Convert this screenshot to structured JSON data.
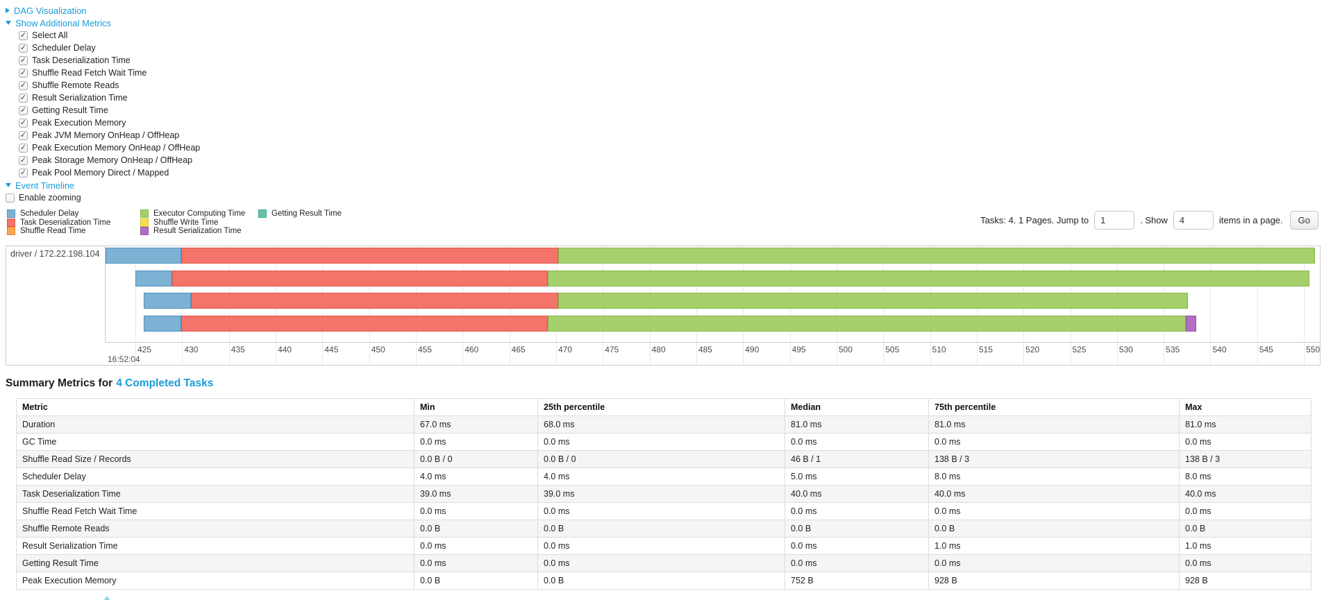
{
  "accent_color": "#1a9cd8",
  "controls": {
    "dag_toggle": {
      "label": "DAG Visualization",
      "state": "collapsed"
    },
    "metrics_toggle": {
      "label": "Show Additional Metrics",
      "state": "expanded"
    },
    "metric_checkboxes": [
      {
        "label": "Select All",
        "checked": true
      },
      {
        "label": "Scheduler Delay",
        "checked": true
      },
      {
        "label": "Task Deserialization Time",
        "checked": true
      },
      {
        "label": "Shuffle Read Fetch Wait Time",
        "checked": true
      },
      {
        "label": "Shuffle Remote Reads",
        "checked": true
      },
      {
        "label": "Result Serialization Time",
        "checked": true
      },
      {
        "label": "Getting Result Time",
        "checked": true
      },
      {
        "label": "Peak Execution Memory",
        "checked": true
      },
      {
        "label": "Peak JVM Memory OnHeap / OffHeap",
        "checked": true
      },
      {
        "label": "Peak Execution Memory OnHeap / OffHeap",
        "checked": true
      },
      {
        "label": "Peak Storage Memory OnHeap / OffHeap",
        "checked": true
      },
      {
        "label": "Peak Pool Memory Direct / Mapped",
        "checked": true
      }
    ],
    "timeline_toggle": {
      "label": "Event Timeline",
      "state": "expanded"
    },
    "zoom_checkbox": {
      "label": "Enable zooming",
      "checked": false
    }
  },
  "pagination": {
    "info_text": "Tasks: 4. 1 Pages. Jump to",
    "jump_input": "1",
    "between_text": ". Show",
    "page_size_input": "4",
    "after_text": "items in a page.",
    "go_button": "Go"
  },
  "legend": {
    "items": [
      {
        "key": "scheduler_delay",
        "label": "Scheduler Delay"
      },
      {
        "key": "task_deserialization",
        "label": "Task Deserialization Time"
      },
      {
        "key": "shuffle_read",
        "label": "Shuffle Read Time"
      },
      {
        "key": "executor_computing",
        "label": "Executor Computing Time"
      },
      {
        "key": "shuffle_write",
        "label": "Shuffle Write Time"
      },
      {
        "key": "result_serialization",
        "label": "Result Serialization Time"
      },
      {
        "key": "getting_result",
        "label": "Getting Result Time"
      }
    ],
    "column_sizes": [
      3,
      3,
      1
    ]
  },
  "chart_data": {
    "type": "timeline",
    "group_label": "driver / 172.22.198.104",
    "x_axis": {
      "major_label": "16:52:04",
      "tick_start": 425,
      "tick_end": 550,
      "tick_step": 5,
      "domain": [
        421.8,
        551.7
      ],
      "unit": "ms within second 16:52:04"
    },
    "colors": {
      "scheduler_delay": {
        "fill": "#7eb2d5",
        "border": "#4e90be"
      },
      "task_deserialization": {
        "fill": "#f4736b",
        "border": "#e35649"
      },
      "shuffle_read": {
        "fill": "#f8a450",
        "border": "#e8882f"
      },
      "executor_computing": {
        "fill": "#a5d06b",
        "border": "#87b847"
      },
      "shuffle_write": {
        "fill": "#f2e04f",
        "border": "#d9c536"
      },
      "result_serialization": {
        "fill": "#b06fc1",
        "border": "#9551a6"
      },
      "getting_result": {
        "fill": "#66c2a9",
        "border": "#3fa98c"
      }
    },
    "tasks": [
      {
        "segments": [
          {
            "name": "scheduler_delay",
            "start": 421.8,
            "end": 429.9
          },
          {
            "name": "task_deserialization",
            "start": 429.9,
            "end": 470.2
          },
          {
            "name": "executor_computing",
            "start": 470.2,
            "end": 551.2
          }
        ]
      },
      {
        "segments": [
          {
            "name": "scheduler_delay",
            "start": 425.0,
            "end": 428.9
          },
          {
            "name": "task_deserialization",
            "start": 428.9,
            "end": 469.1
          },
          {
            "name": "executor_computing",
            "start": 469.1,
            "end": 550.6
          }
        ]
      },
      {
        "segments": [
          {
            "name": "scheduler_delay",
            "start": 425.9,
            "end": 430.9
          },
          {
            "name": "task_deserialization",
            "start": 430.9,
            "end": 470.2
          },
          {
            "name": "executor_computing",
            "start": 470.2,
            "end": 537.6
          }
        ]
      },
      {
        "segments": [
          {
            "name": "scheduler_delay",
            "start": 425.9,
            "end": 429.9
          },
          {
            "name": "task_deserialization",
            "start": 429.9,
            "end": 469.1
          },
          {
            "name": "executor_computing",
            "start": 469.1,
            "end": 537.4
          },
          {
            "name": "result_serialization",
            "start": 537.4,
            "end": 538.5
          }
        ]
      }
    ]
  },
  "summary": {
    "title_prefix": "Summary Metrics for",
    "title_link": "4 Completed Tasks",
    "table": {
      "columns": [
        "Metric",
        "Min",
        "25th percentile",
        "Median",
        "75th percentile",
        "Max"
      ],
      "rows": [
        [
          "Duration",
          "67.0 ms",
          "68.0 ms",
          "81.0 ms",
          "81.0 ms",
          "81.0 ms"
        ],
        [
          "GC Time",
          "0.0 ms",
          "0.0 ms",
          "0.0 ms",
          "0.0 ms",
          "0.0 ms"
        ],
        [
          "Shuffle Read Size / Records",
          "0.0 B / 0",
          "0.0 B / 0",
          "46 B / 1",
          "138 B / 3",
          "138 B / 3"
        ],
        [
          "Scheduler Delay",
          "4.0 ms",
          "4.0 ms",
          "5.0 ms",
          "8.0 ms",
          "8.0 ms"
        ],
        [
          "Task Deserialization Time",
          "39.0 ms",
          "39.0 ms",
          "40.0 ms",
          "40.0 ms",
          "40.0 ms"
        ],
        [
          "Shuffle Read Fetch Wait Time",
          "0.0 ms",
          "0.0 ms",
          "0.0 ms",
          "0.0 ms",
          "0.0 ms"
        ],
        [
          "Shuffle Remote Reads",
          "0.0 B",
          "0.0 B",
          "0.0 B",
          "0.0 B",
          "0.0 B"
        ],
        [
          "Result Serialization Time",
          "0.0 ms",
          "0.0 ms",
          "0.0 ms",
          "1.0 ms",
          "1.0 ms"
        ],
        [
          "Getting Result Time",
          "0.0 ms",
          "0.0 ms",
          "0.0 ms",
          "0.0 ms",
          "0.0 ms"
        ],
        [
          "Peak Execution Memory",
          "0.0 B",
          "0.0 B",
          "752 B",
          "928 B",
          "928 B"
        ]
      ]
    }
  }
}
